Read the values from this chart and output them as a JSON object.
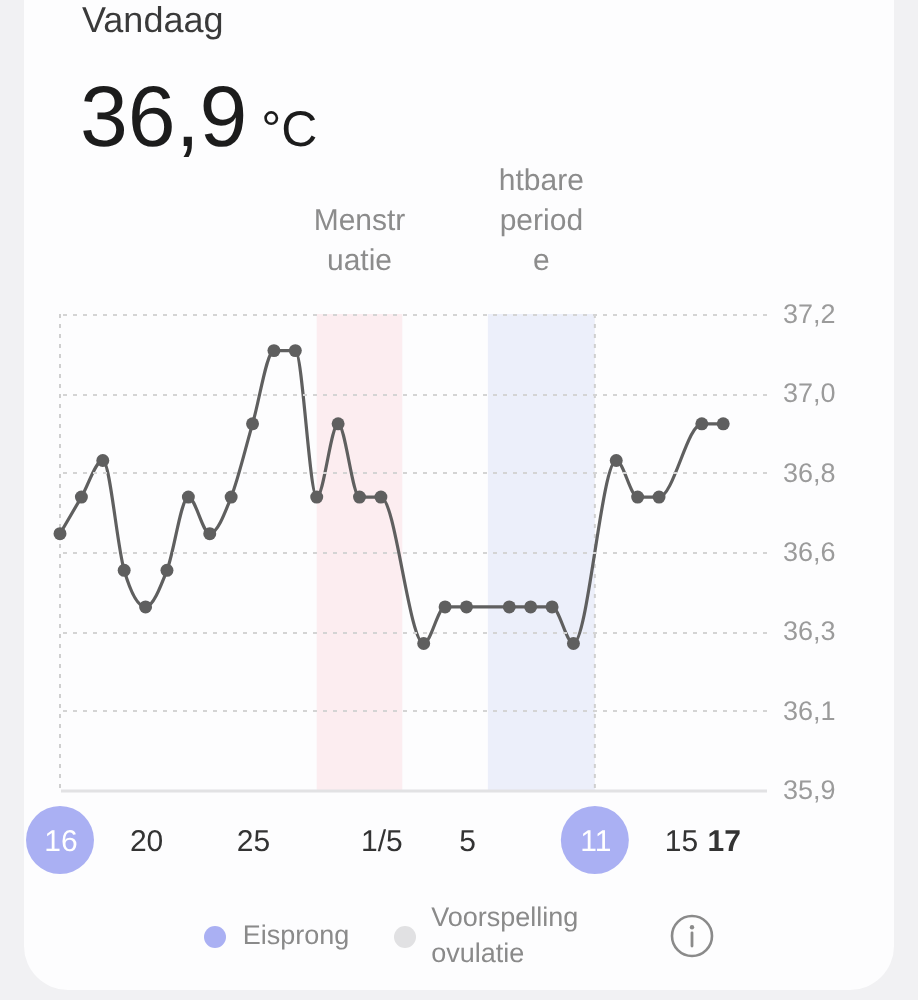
{
  "chart_data": {
    "type": "line",
    "title": "Vandaag",
    "subtitle": "36,9 °C",
    "series": [
      {
        "type": "line",
        "color": "#5f5f5f",
        "x": [
          "--04-16",
          "--04-17",
          "--04-18",
          "--04-19",
          "--04-20",
          "--04-21",
          "--04-22",
          "--04-23",
          "--04-24",
          "--04-25",
          "--04-26",
          "--04-27",
          "--04-28",
          "--04-29",
          "--04-30",
          "--05-01",
          "--05-03",
          "--05-04",
          "--05-05",
          "--05-07",
          "--05-08",
          "--05-09",
          "--05-10",
          "--05-12",
          "--05-13",
          "--05-14",
          "--05-16",
          "--05-17"
        ],
        "values": [
          36.6,
          36.7,
          36.8,
          36.5,
          36.4,
          36.5,
          36.7,
          36.6,
          36.7,
          36.9,
          37.1,
          37.1,
          36.7,
          36.9,
          36.7,
          36.7,
          36.3,
          36.4,
          36.4,
          36.4,
          36.4,
          36.4,
          36.3,
          36.8,
          36.7,
          36.7,
          36.9,
          36.9
        ]
      },
      {
        "name": "Eisprong",
        "type": "scatter",
        "color": "#aab0f3"
      },
      {
        "name": "Voorspelling ovulatie",
        "type": "scatter",
        "color": "#e1e1e3"
      }
    ],
    "xlim": [
      "--04-16",
      "--05-19"
    ],
    "xticks": [
      {
        "value": "--04-16",
        "label": "16"
      },
      {
        "value": "--04-20",
        "label": "20"
      },
      {
        "value": "--04-25",
        "label": "25"
      },
      {
        "value": "--05-01",
        "label": "1/5"
      },
      {
        "value": "--05-05",
        "label": "5"
      },
      {
        "value": "--05-11",
        "label": "11"
      },
      {
        "value": "--05-15",
        "label": "15"
      },
      {
        "value": "--05-17",
        "label": "17"
      }
    ],
    "ylim": [
      35.9,
      37.2
    ],
    "yticks": [
      {
        "value": 35.9,
        "label": "35,9"
      },
      {
        "value": 36.117,
        "label": "36,1"
      },
      {
        "value": 36.333,
        "label": "36,3"
      },
      {
        "value": 36.55,
        "label": "36,6"
      },
      {
        "value": 36.767,
        "label": "36,8"
      },
      {
        "value": 36.983,
        "label": "37,0"
      },
      {
        "value": 37.2,
        "label": "37,2"
      }
    ],
    "bands": [
      {
        "axis": "x",
        "from": "--04-28",
        "to": "--05-02",
        "label": "Menstruatie",
        "color": "#fcedf0"
      },
      {
        "axis": "x",
        "from": "--05-06",
        "to": "--05-11",
        "label": "htbare periode",
        "color": "#eceffa"
      }
    ],
    "ref_lines": [
      {
        "axis": "x",
        "value": "--04-16",
        "color": "#cfcfcf",
        "line_style": "dotted"
      },
      {
        "axis": "x",
        "value": "--05-11",
        "color": "#cfcfcf",
        "line_style": "dotted"
      }
    ],
    "grid": "y",
    "marker": "circle",
    "legend": "bottom"
  }
}
